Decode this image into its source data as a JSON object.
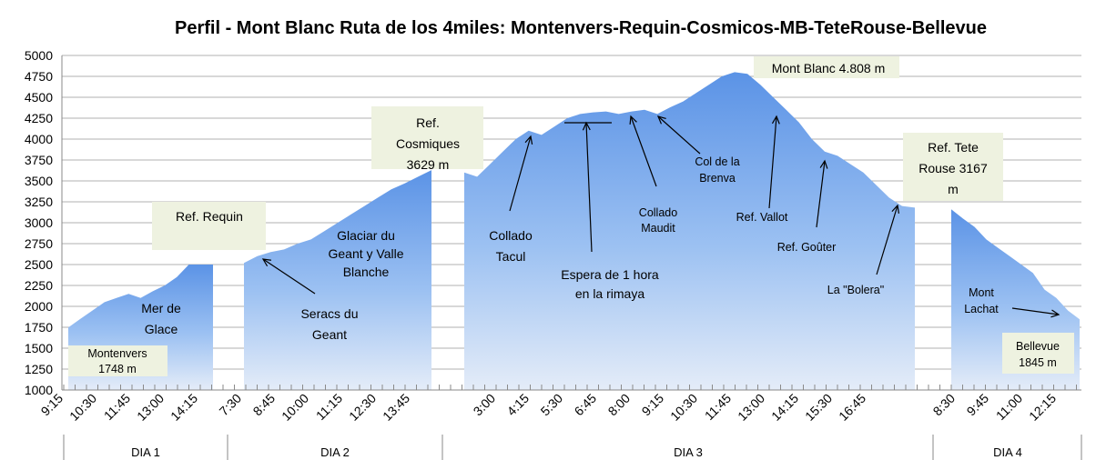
{
  "chart_data": {
    "type": "area",
    "title": "Perfil - Mont Blanc Ruta de los 4miles: Montenvers-Requin-Cosmicos-MB-TeteRouse-Bellevue",
    "ylim": [
      1000,
      5000
    ],
    "yticks": [
      "1000",
      "1250",
      "1500",
      "1750",
      "2000",
      "2250",
      "2500",
      "2750",
      "3000",
      "3250",
      "3500",
      "3750",
      "4000",
      "4250",
      "4500",
      "4750",
      "5000"
    ],
    "grid": true,
    "xtick_labels": [
      "9:15",
      "10:30",
      "11:45",
      "13:00",
      "14:15",
      "7:30",
      "8:45",
      "10:00",
      "11:15",
      "12:30",
      "13:45",
      "3:00",
      "4:15",
      "5:30",
      "6:45",
      "8:00",
      "9:15",
      "10:30",
      "11:45",
      "13:00",
      "14:15",
      "15:30",
      "16:45",
      "8:30",
      "9:45",
      "11:00",
      "12:15"
    ],
    "days": [
      "DIA 1",
      "DIA 2",
      "DIA 3",
      "DIA 4"
    ],
    "series": [
      {
        "day": "DIA 1",
        "values": [
          1748,
          1850,
          1950,
          2050,
          2100,
          2150,
          2100,
          2180,
          2250,
          2350,
          2500,
          2500,
          2500
        ]
      },
      {
        "day": "DIA 2",
        "values": [
          2520,
          2600,
          2650,
          2680,
          2750,
          2800,
          2900,
          3000,
          3100,
          3200,
          3300,
          3400,
          3470,
          3550,
          3629
        ]
      },
      {
        "day": "DIA 3",
        "values": [
          3600,
          3550,
          3700,
          3850,
          4000,
          4100,
          4050,
          4150,
          4250,
          4300,
          4320,
          4330,
          4300,
          4330,
          4350,
          4300,
          4380,
          4450,
          4550,
          4650,
          4750,
          4800,
          4780,
          4650,
          4500,
          4350,
          4200,
          4000,
          3850,
          3800,
          3700,
          3600,
          3450,
          3300,
          3200,
          3180
        ]
      },
      {
        "day": "DIA 4",
        "values": [
          3160,
          3050,
          2950,
          2800,
          2700,
          2600,
          2500,
          2400,
          2200,
          2100,
          1950,
          1845
        ]
      }
    ],
    "annotations": [
      {
        "text": "Montenvers 1748  m"
      },
      {
        "text": "Mer de Glace"
      },
      {
        "text": "Ref. Requin"
      },
      {
        "text": "Seracs du Geant"
      },
      {
        "text": "Glaciar du Geant y Valle Blanche"
      },
      {
        "text": "Ref. Cosmiques 3629 m"
      },
      {
        "text": "Collado Tacul"
      },
      {
        "text": "Espera de 1 hora en la rimaya"
      },
      {
        "text": "Collado Maudit"
      },
      {
        "text": "Col de la Brenva"
      },
      {
        "text": "Mont Blanc 4.808  m"
      },
      {
        "text": "Ref. Vallot"
      },
      {
        "text": "Ref. Goûter"
      },
      {
        "text": "La \"Bolera\""
      },
      {
        "text": "Ref. Tete Rouse 3167 m"
      },
      {
        "text": "Mont Lachat"
      },
      {
        "text": "Bellevue 1845  m"
      }
    ]
  }
}
